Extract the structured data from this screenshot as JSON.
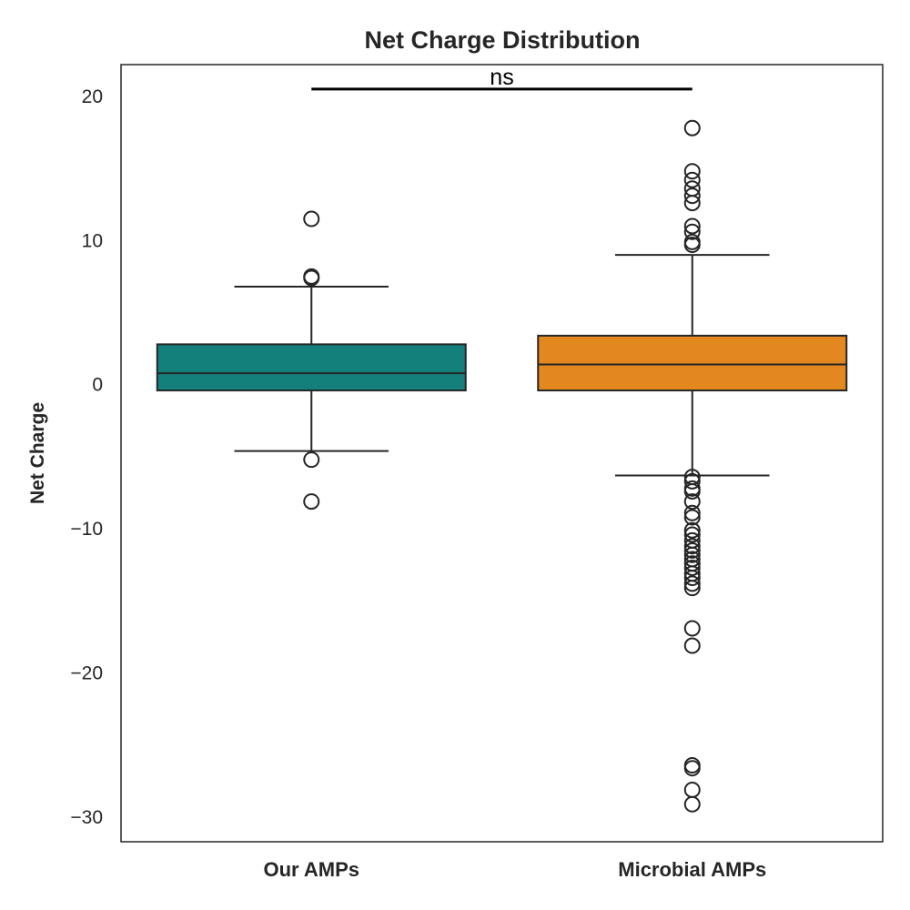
{
  "chart_data": {
    "type": "box",
    "title": "Net Charge Distribution",
    "xlabel": "",
    "ylabel": "Net Charge",
    "ylim": [
      -31.7,
      22.2
    ],
    "yticks": [
      20,
      10,
      0,
      -10,
      -20,
      -30
    ],
    "ytick_labels": [
      "20",
      "10",
      "0",
      "−10",
      "−20",
      "−30"
    ],
    "grid": false,
    "categories": [
      "Our AMPs",
      "Microbial AMPs"
    ],
    "boxes": [
      {
        "category": "Our AMPs",
        "color": "#13807C",
        "whisker_low": -4.6,
        "q1": -0.4,
        "median": 0.8,
        "q3": 2.8,
        "whisker_high": 6.8,
        "outliers": [
          11.5,
          7.4,
          7.5,
          -5.2,
          -8.1
        ]
      },
      {
        "category": "Microbial AMPs",
        "color": "#E2881F",
        "whisker_low": -6.3,
        "q1": -0.4,
        "median": 1.4,
        "q3": 3.4,
        "whisker_high": 9.0,
        "outliers": [
          17.8,
          14.8,
          14.2,
          13.6,
          13.1,
          12.6,
          11.0,
          10.6,
          9.9,
          9.7,
          -6.4,
          -6.7,
          -7.2,
          -7.4,
          -8.1,
          -8.9,
          -9.2,
          -10.1,
          -10.4,
          -10.8,
          -11.2,
          -11.5,
          -11.8,
          -12.1,
          -12.4,
          -12.7,
          -13.1,
          -13.4,
          -13.8,
          -14.1,
          -16.9,
          -18.1,
          -26.4,
          -26.6,
          -28.1,
          -29.1
        ]
      }
    ],
    "annotation": {
      "text": "ns",
      "y": 20.5,
      "from": "Our AMPs",
      "to": "Microbial AMPs"
    }
  }
}
